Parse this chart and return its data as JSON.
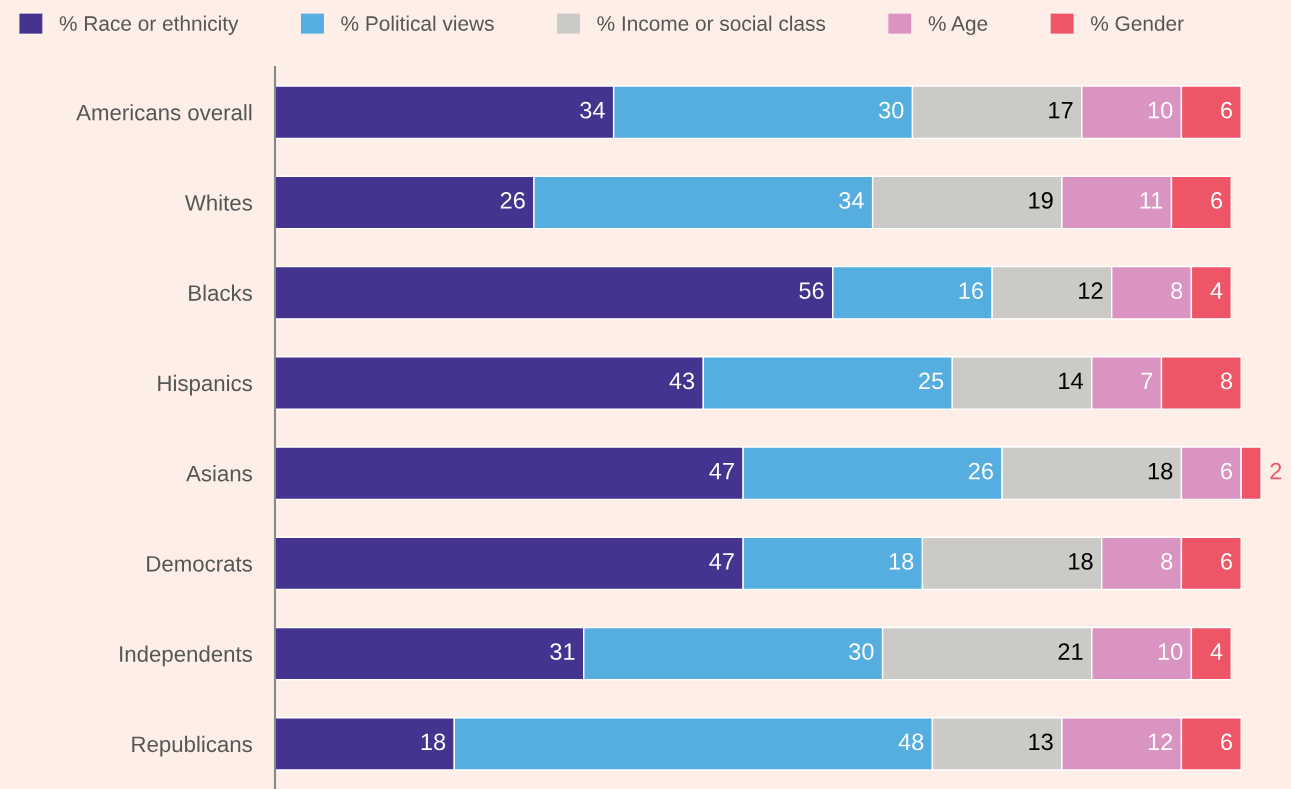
{
  "chart_data": {
    "type": "bar",
    "orientation": "horizontal",
    "stacked": true,
    "data_labels": true,
    "legend": "top",
    "grid": false,
    "tick_labels": "y",
    "xlim": [
      0,
      102
    ],
    "categories": [
      "Americans overall",
      "Whites",
      "Blacks",
      "Hispanics",
      "Asians",
      "Democrats",
      "Independents",
      "Republicans"
    ],
    "series": [
      {
        "name": "% Race or ethnicity",
        "color": "#45348f",
        "values": [
          34,
          26,
          56,
          43,
          47,
          47,
          31,
          18
        ]
      },
      {
        "name": "% Political views",
        "color": "#56addf",
        "values": [
          30,
          34,
          16,
          25,
          26,
          18,
          30,
          48
        ]
      },
      {
        "name": "% Income or social class",
        "color": "#cccac7",
        "values": [
          17,
          19,
          12,
          14,
          18,
          18,
          21,
          13
        ]
      },
      {
        "name": "% Age",
        "color": "#da94c2",
        "values": [
          10,
          11,
          8,
          7,
          6,
          8,
          10,
          12
        ]
      },
      {
        "name": "% Gender",
        "color": "#ee5567",
        "values": [
          6,
          6,
          4,
          8,
          2,
          6,
          4,
          6
        ]
      }
    ]
  }
}
